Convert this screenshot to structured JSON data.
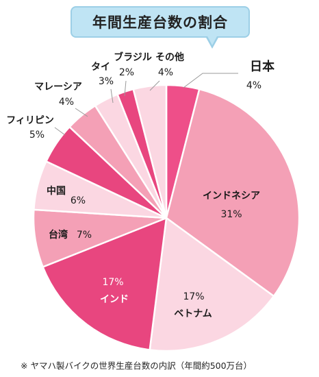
{
  "chart_data": {
    "type": "pie",
    "title": "年間生産台数の割合",
    "unit": "%",
    "slices": [
      {
        "name": "日本",
        "value": 4,
        "color": "#ee4f89"
      },
      {
        "name": "インドネシア",
        "value": 31,
        "color": "#f4a0b6"
      },
      {
        "name": "ベトナム",
        "value": 17,
        "color": "#fbd7e2"
      },
      {
        "name": "インド",
        "value": 17,
        "color": "#e8467f"
      },
      {
        "name": "台湾",
        "value": 7,
        "color": "#f4a0b6"
      },
      {
        "name": "中国",
        "value": 6,
        "color": "#fbd7e2"
      },
      {
        "name": "フィリピン",
        "value": 5,
        "color": "#e8467f"
      },
      {
        "name": "マレーシア",
        "value": 4,
        "color": "#f4a0b6"
      },
      {
        "name": "タイ",
        "value": 3,
        "color": "#fbd7e2"
      },
      {
        "name": "ブラジル",
        "value": 2,
        "color": "#e8467f"
      },
      {
        "name": "その他",
        "value": 4,
        "color": "#fbd7e2"
      }
    ]
  },
  "footnote": "※ ヤマハ製バイクの世界生産台数の内訳（年間約500万台）"
}
